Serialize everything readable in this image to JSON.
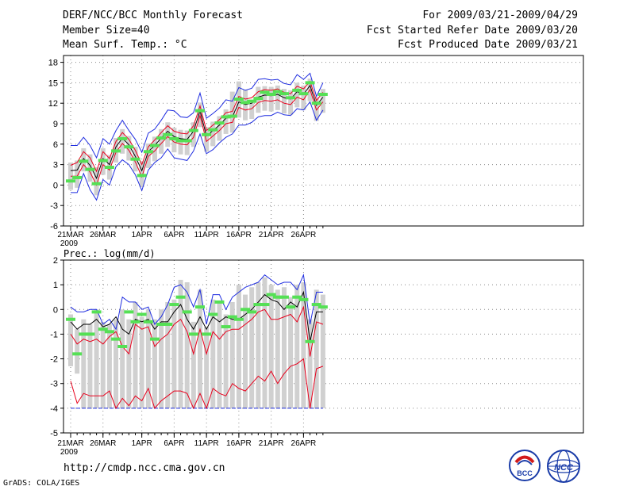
{
  "header": {
    "title": "DERF/NCC/BCC Monthly Forecast",
    "member_size": "Member Size=40",
    "variable": "Mean Surf. Temp.: °C",
    "period": "For 2009/03/21-2009/04/29",
    "started": "Fcst Started Refer Date 2009/03/20",
    "produced": "Fcst Produced Date 2009/03/21"
  },
  "footer": {
    "url": "http://cmdp.ncc.cma.gov.cn",
    "credit": "GrADS: COLA/IGES",
    "logo_left_text": "BCC",
    "logo_right_text": "NCC"
  },
  "colors": {
    "mean": "#000000",
    "spread": "#e8001c",
    "envelope": "#1f2de0",
    "bar": "#d0d0d0",
    "obs": "#55e055",
    "grid": "#8a8a8a"
  },
  "chart_data": [
    {
      "type": "line",
      "name": "temperature",
      "title": "",
      "ylabel": "Mean Surf. Temp.: °C",
      "ylim": [
        -6,
        19
      ],
      "yticks": [
        -6,
        -3,
        0,
        3,
        6,
        9,
        12,
        15,
        18
      ],
      "x_day_range": [
        1,
        40
      ],
      "xtick_days": [
        1,
        6,
        12,
        17,
        22,
        27,
        32,
        37
      ],
      "xtick_labels": [
        "21MAR",
        "26MAR",
        "1APR",
        "6APR",
        "11APR",
        "16APR",
        "21APR",
        "26APR"
      ],
      "year_label": "2009",
      "ensemble_mean": [
        2.1,
        2.2,
        3.9,
        2.9,
        1.0,
        3.9,
        3.0,
        5.6,
        6.9,
        5.9,
        4.2,
        2.1,
        4.9,
        5.8,
        6.9,
        7.9,
        7.1,
        6.8,
        6.7,
        7.9,
        10.9,
        7.2,
        8.0,
        8.8,
        9.8,
        10.0,
        12.2,
        11.8,
        12.0,
        12.9,
        13.2,
        13.1,
        13.3,
        12.8,
        12.6,
        13.7,
        13.3,
        14.6,
        11.7,
        12.9
      ],
      "upper_spread": [
        2.9,
        3.3,
        4.9,
        4.0,
        2.0,
        4.9,
        3.9,
        6.4,
        7.7,
        6.7,
        5.1,
        3.0,
        5.6,
        6.6,
        7.7,
        8.7,
        7.9,
        7.6,
        7.5,
        8.7,
        11.6,
        8.0,
        8.8,
        9.6,
        10.6,
        10.8,
        13.0,
        12.6,
        12.8,
        13.7,
        14.0,
        13.9,
        14.1,
        13.6,
        13.4,
        14.5,
        14.1,
        15.2,
        12.4,
        13.6
      ],
      "lower_spread": [
        1.3,
        1.3,
        3.0,
        1.9,
        0.0,
        3.0,
        2.2,
        4.8,
        6.1,
        5.1,
        3.4,
        1.2,
        4.2,
        5.0,
        6.1,
        7.1,
        6.3,
        6.0,
        5.9,
        7.0,
        10.2,
        6.4,
        7.2,
        8.0,
        9.0,
        9.2,
        11.4,
        11.0,
        11.2,
        12.1,
        12.4,
        12.3,
        12.5,
        12.0,
        11.8,
        12.9,
        12.5,
        14.0,
        11.0,
        12.2
      ],
      "envelope_max": [
        5.8,
        5.8,
        7.0,
        5.8,
        4.0,
        6.8,
        6.0,
        8.0,
        9.5,
        8.0,
        6.7,
        4.8,
        7.6,
        8.2,
        9.5,
        11.0,
        10.9,
        10.0,
        9.9,
        10.6,
        13.5,
        9.8,
        10.5,
        11.3,
        12.5,
        12.3,
        14.3,
        13.9,
        14.2,
        15.5,
        15.6,
        15.4,
        15.5,
        14.9,
        14.7,
        16.2,
        15.5,
        16.4,
        13.0,
        15.0
      ],
      "envelope_min": [
        -1.1,
        -1.1,
        1.7,
        -0.7,
        -2.2,
        0.8,
        0.0,
        2.7,
        3.7,
        3.0,
        1.5,
        -0.8,
        2.2,
        3.3,
        4.0,
        5.3,
        4.0,
        3.8,
        3.6,
        5.0,
        7.5,
        4.6,
        5.2,
        6.2,
        7.0,
        7.5,
        8.8,
        8.8,
        9.2,
        10.0,
        10.2,
        10.2,
        10.7,
        10.3,
        10.2,
        11.2,
        11.0,
        12.2,
        9.5,
        11.0
      ],
      "bar_top": [
        3.3,
        3.6,
        5.4,
        4.5,
        2.6,
        5.4,
        4.4,
        6.9,
        8.2,
        7.2,
        5.6,
        3.5,
        6.1,
        7.1,
        8.2,
        9.2,
        8.4,
        8.1,
        8.0,
        9.2,
        12.1,
        8.5,
        9.3,
        10.1,
        11.1,
        13.7,
        15.2,
        14.0,
        12.2,
        14.4,
        14.5,
        14.4,
        14.6,
        14.1,
        13.9,
        15.0,
        14.6,
        15.6,
        12.9,
        14.1
      ],
      "bar_bottom": [
        -0.7,
        -0.4,
        2.0,
        0.5,
        -1.5,
        1.5,
        0.8,
        3.3,
        4.6,
        3.6,
        2.0,
        -0.3,
        2.5,
        3.5,
        4.6,
        5.6,
        4.8,
        4.5,
        4.4,
        5.6,
        8.5,
        4.9,
        5.7,
        6.5,
        7.5,
        7.7,
        9.9,
        9.5,
        9.7,
        10.6,
        10.9,
        10.8,
        11.0,
        10.5,
        10.3,
        11.4,
        11.0,
        12.3,
        9.4,
        10.6
      ],
      "observed": [
        0.6,
        1.1,
        3.5,
        2.3,
        0.2,
        3.6,
        2.6,
        5.0,
        6.8,
        5.6,
        3.8,
        1.4,
        4.9,
        5.8,
        6.9,
        7.4,
        6.8,
        6.5,
        6.5,
        8.0,
        10.9,
        7.4,
        8.1,
        9.1,
        10.0,
        10.1,
        12.6,
        12.1,
        12.3,
        12.7,
        13.6,
        13.3,
        13.7,
        13.4,
        12.8,
        13.9,
        13.4,
        15.0,
        12.0,
        13.3
      ]
    },
    {
      "type": "line",
      "name": "precipitation",
      "title": "",
      "ylabel": "Prec.: log(mm/d)",
      "ylim": [
        -5,
        2
      ],
      "yticks": [
        -5,
        -4,
        -3,
        -2,
        -1,
        0,
        1,
        2
      ],
      "x_day_range": [
        1,
        40
      ],
      "xtick_days": [
        1,
        6,
        12,
        17,
        22,
        27,
        32,
        37
      ],
      "xtick_labels": [
        "21MAR",
        "26MAR",
        "1APR",
        "6APR",
        "11APR",
        "16APR",
        "21APR",
        "26APR"
      ],
      "year_label": "2009",
      "ensemble_mean": [
        -0.5,
        -0.8,
        -0.6,
        -0.6,
        -0.4,
        -0.7,
        -0.6,
        -0.3,
        -0.8,
        -1.0,
        -0.4,
        -0.5,
        -0.4,
        -0.8,
        -0.5,
        -0.5,
        -0.1,
        0.2,
        -0.4,
        -0.8,
        -0.3,
        -0.8,
        -0.3,
        -0.5,
        -0.3,
        -0.4,
        -0.4,
        -0.2,
        0.0,
        0.3,
        0.6,
        0.4,
        0.3,
        0.0,
        0.3,
        0.1,
        0.7,
        -1.3,
        -0.1,
        -0.1
      ],
      "upper_spread": [
        -1.0,
        -1.4,
        -1.2,
        -1.3,
        -1.2,
        -1.4,
        -1.1,
        -0.9,
        -1.5,
        -1.8,
        -0.6,
        -0.8,
        -0.7,
        -1.5,
        -1.2,
        -1.0,
        -0.6,
        -0.4,
        -0.9,
        -1.8,
        -0.8,
        -1.8,
        -0.9,
        -1.2,
        -0.9,
        -0.8,
        -0.8,
        -0.6,
        -0.4,
        -0.1,
        0.0,
        -0.4,
        -0.4,
        -0.3,
        -0.2,
        -0.5,
        0.1,
        -1.9,
        -0.5,
        -0.6
      ],
      "lower_spread": [
        -2.9,
        -3.8,
        -3.4,
        -3.5,
        -3.5,
        -3.5,
        -3.3,
        -4.0,
        -3.6,
        -3.9,
        -3.5,
        -3.7,
        -3.2,
        -4.0,
        -3.7,
        -3.5,
        -3.3,
        -3.3,
        -3.4,
        -4.0,
        -3.4,
        -4.0,
        -3.2,
        -3.4,
        -3.5,
        -3.0,
        -3.2,
        -3.3,
        -3.0,
        -2.7,
        -2.9,
        -2.5,
        -3.0,
        -2.6,
        -2.3,
        -2.2,
        -2.0,
        -4.0,
        -2.4,
        -2.3
      ],
      "envelope_max": [
        0.1,
        -0.1,
        -0.1,
        0.0,
        0.0,
        -0.6,
        -0.4,
        -0.8,
        0.5,
        0.3,
        0.3,
        0.0,
        0.1,
        -0.6,
        -0.3,
        0.2,
        0.9,
        1.0,
        0.7,
        0.1,
        0.8,
        -0.6,
        0.6,
        0.6,
        0.0,
        0.5,
        0.7,
        0.9,
        1.0,
        1.1,
        1.4,
        1.2,
        1.0,
        1.1,
        1.1,
        0.8,
        1.4,
        -0.6,
        0.7,
        0.7
      ],
      "envelope_min": [
        -4.0,
        -4.0,
        -4.0,
        -4.0,
        -4.0,
        -4.0,
        -4.0,
        -4.0,
        -4.0,
        -4.0,
        -4.0,
        -4.0,
        -4.0,
        -4.0,
        -4.0,
        -4.0,
        -4.0,
        -4.0,
        -4.0,
        -4.0,
        -4.0,
        -4.0,
        -4.0,
        -4.0,
        -4.0,
        -4.0,
        -4.0,
        -4.0,
        -4.0,
        -4.0,
        -4.0,
        -4.0,
        -4.0,
        -4.0,
        -4.0,
        -4.0,
        -4.0,
        -4.0,
        -4.0,
        -4.0
      ],
      "bar_top": [
        -0.2,
        -0.8,
        -0.4,
        -0.6,
        0.0,
        -0.5,
        -0.6,
        -0.4,
        0.0,
        -0.4,
        0.3,
        -0.3,
        0.0,
        -0.4,
        0.0,
        0.3,
        0.4,
        1.2,
        1.1,
        -0.5,
        0.8,
        -0.7,
        0.4,
        0.3,
        -0.2,
        0.3,
        1.0,
        0.6,
        0.9,
        1.1,
        1.3,
        1.0,
        0.8,
        0.9,
        0.5,
        1.0,
        1.1,
        -0.4,
        0.8,
        0.6
      ],
      "bar_bottom": [
        -2.3,
        -2.6,
        -4.0,
        -4.0,
        -4.0,
        -4.0,
        -4.0,
        -4.0,
        -4.0,
        -4.0,
        -4.0,
        -4.0,
        -4.0,
        -4.0,
        -4.0,
        -4.0,
        -4.0,
        -4.0,
        -4.0,
        -4.0,
        -4.0,
        -4.0,
        -4.0,
        -4.0,
        -4.0,
        -4.0,
        -4.0,
        -4.0,
        -4.0,
        -4.0,
        -4.0,
        -4.0,
        -4.0,
        -4.0,
        -4.0,
        -4.0,
        -4.0,
        -4.0,
        -4.0,
        -4.0
      ],
      "observed": [
        -0.4,
        -1.8,
        -1.0,
        -1.0,
        -0.1,
        -0.8,
        -0.9,
        -1.2,
        -1.5,
        -0.1,
        -0.5,
        -0.2,
        -0.5,
        -1.2,
        -0.6,
        -0.6,
        0.2,
        0.5,
        -0.1,
        -1.0,
        0.1,
        -1.0,
        -0.2,
        0.3,
        -0.7,
        -0.3,
        -0.4,
        0.0,
        -0.1,
        0.2,
        0.2,
        0.6,
        0.5,
        0.5,
        0.1,
        0.5,
        0.4,
        -1.3,
        0.2,
        0.1
      ]
    }
  ]
}
